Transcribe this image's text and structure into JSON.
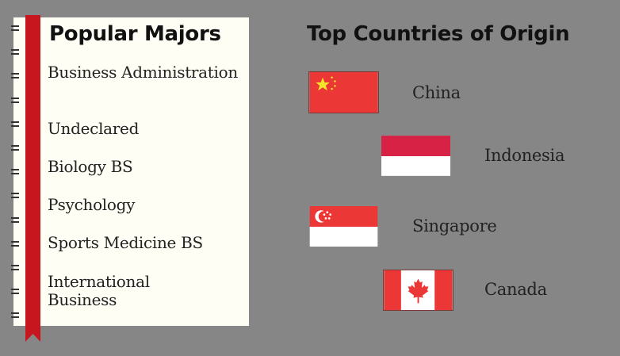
{
  "left_panel": {
    "title": "Popular Majors",
    "majors": [
      "Business Administration",
      "Undeclared",
      "Biology BS",
      "Psychology",
      "Sports Medicine BS",
      "International Business"
    ]
  },
  "right_panel": {
    "title": "Top Countries of Origin",
    "countries": [
      {
        "name": "China",
        "flag": "china-flag-icon"
      },
      {
        "name": "Indonesia",
        "flag": "indonesia-flag-icon"
      },
      {
        "name": "Singapore",
        "flag": "singapore-flag-icon"
      },
      {
        "name": "Canada",
        "flag": "canada-flag-icon"
      }
    ]
  },
  "colors": {
    "background": "#868686",
    "paper": "#fefef4",
    "ribbon": "#c8161e",
    "flag_red": "#ec3737",
    "indonesia_red": "#d72145"
  }
}
